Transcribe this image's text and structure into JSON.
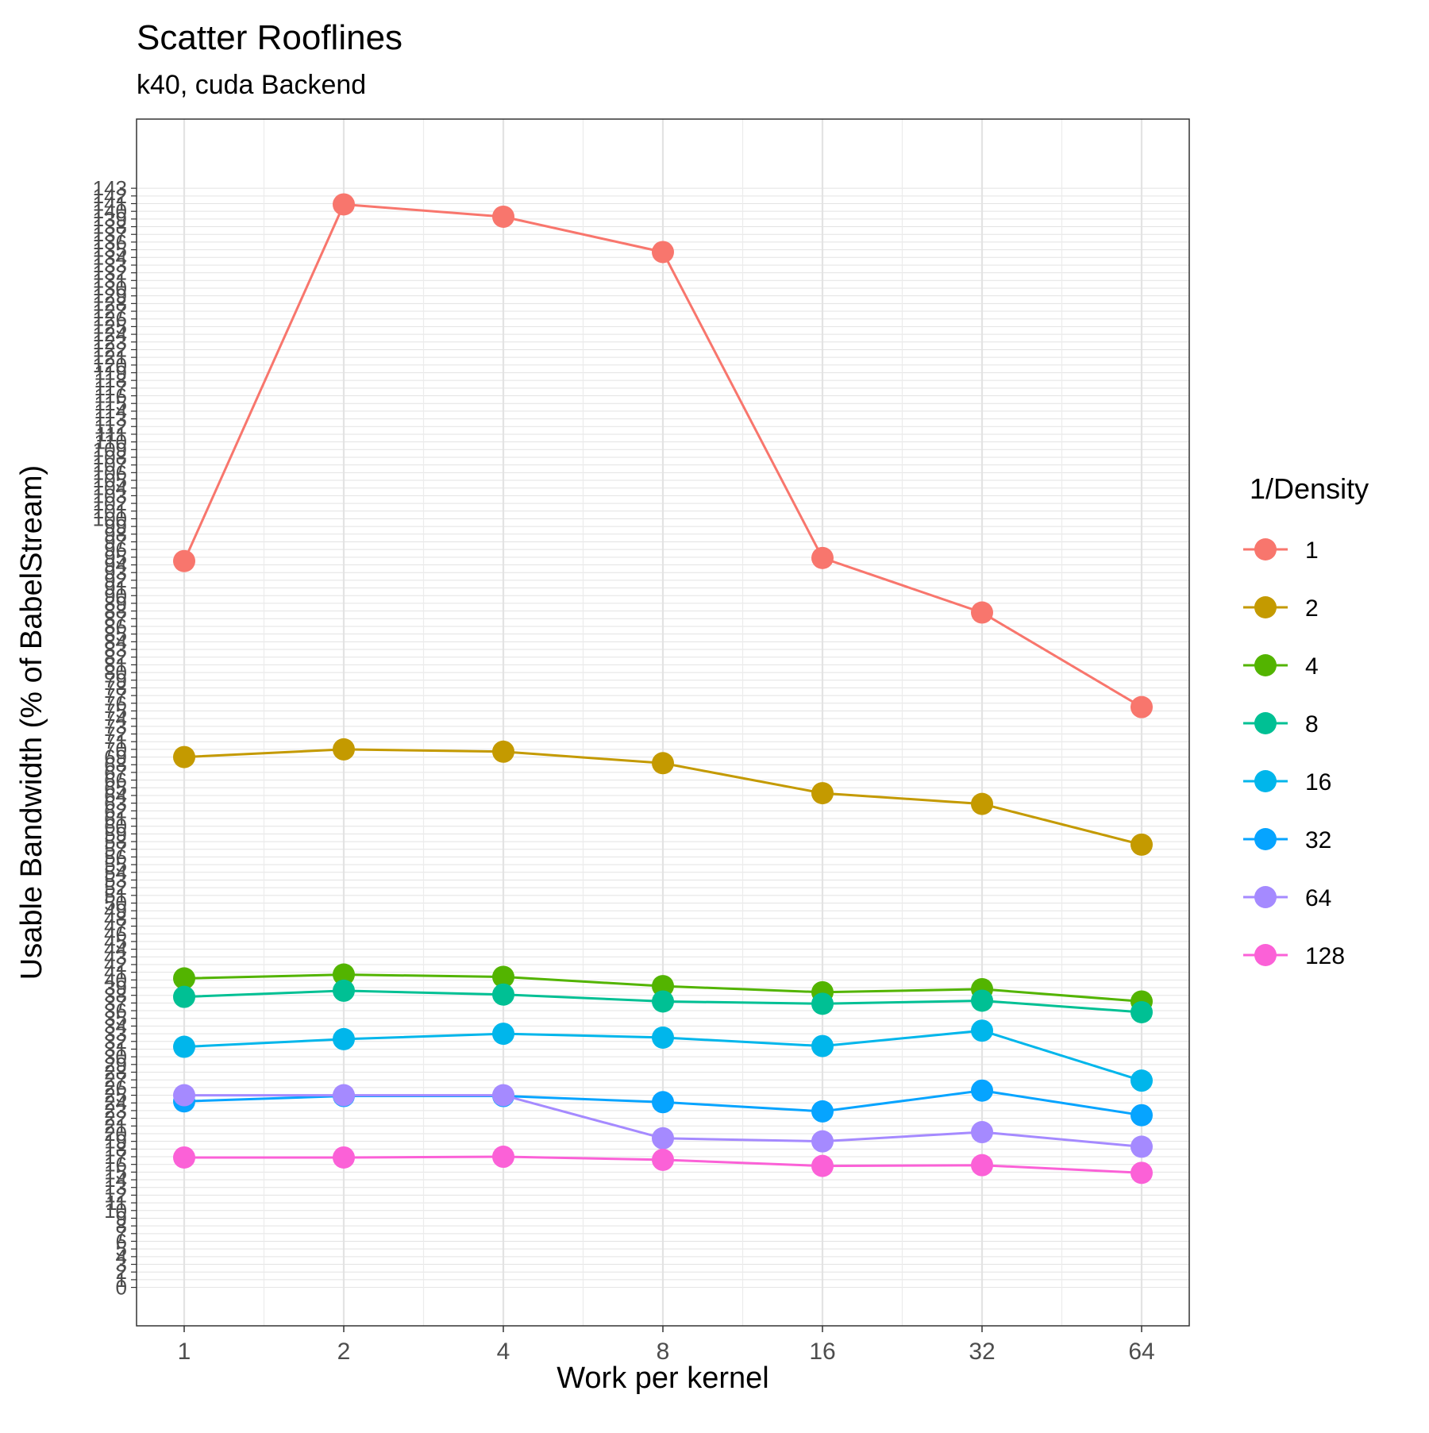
{
  "chart_data": {
    "type": "line",
    "title": "Scatter Rooflines",
    "subtitle": "k40, cuda Backend",
    "xlabel": "Work per kernel",
    "ylabel": "Usable Bandwidth (% of BabelStream)",
    "x_scale": "log2",
    "x": [
      1,
      2,
      4,
      8,
      16,
      32,
      64
    ],
    "x_tick_labels": [
      "1",
      "2",
      "4",
      "8",
      "16",
      "32",
      "64"
    ],
    "ylim": [
      -5,
      152
    ],
    "y_ticks_min": 0,
    "y_ticks_max": 143,
    "y_ticks_step": 1,
    "grid": true,
    "legend": {
      "title": "1/Density",
      "placement": "right"
    },
    "series": [
      {
        "name": "1",
        "color": "#F8766D",
        "values": [
          94.5,
          140.9,
          139.3,
          134.7,
          94.9,
          87.8,
          75.5
        ]
      },
      {
        "name": "2",
        "color": "#C49A00",
        "values": [
          69.0,
          70.0,
          69.7,
          68.2,
          64.3,
          62.9,
          57.6
        ]
      },
      {
        "name": "4",
        "color": "#53B400",
        "values": [
          40.2,
          40.7,
          40.4,
          39.2,
          38.4,
          38.8,
          37.2
        ]
      },
      {
        "name": "8",
        "color": "#00C094",
        "values": [
          37.8,
          38.6,
          38.1,
          37.2,
          36.9,
          37.3,
          35.8
        ]
      },
      {
        "name": "16",
        "color": "#00B6EB",
        "values": [
          31.3,
          32.3,
          33.0,
          32.5,
          31.4,
          33.4,
          26.9
        ]
      },
      {
        "name": "32",
        "color": "#06A4FF",
        "values": [
          24.2,
          24.9,
          24.9,
          24.1,
          22.9,
          25.6,
          22.4
        ]
      },
      {
        "name": "64",
        "color": "#A58AFF",
        "values": [
          25.0,
          25.0,
          25.0,
          19.4,
          19.0,
          20.2,
          18.3
        ]
      },
      {
        "name": "128",
        "color": "#FB61D7",
        "values": [
          16.9,
          16.9,
          17.0,
          16.6,
          15.8,
          15.9,
          14.9
        ]
      }
    ]
  }
}
